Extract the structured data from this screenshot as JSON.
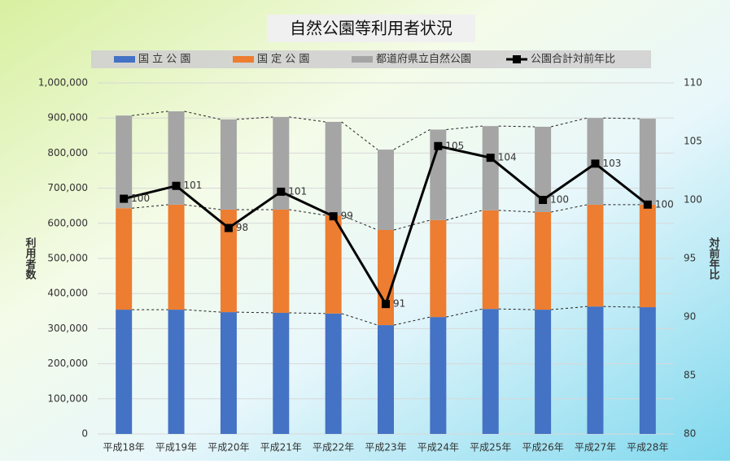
{
  "chart_data": {
    "type": "bar",
    "title": "自然公園等利用者状況",
    "categories": [
      "平成18年",
      "平成19年",
      "平成20年",
      "平成21年",
      "平成22年",
      "平成23年",
      "平成24年",
      "平成25年",
      "平成26年",
      "平成27年",
      "平成28年"
    ],
    "series": [
      {
        "name": "国 立 公 園",
        "color": "#4472c4",
        "values": [
          354000,
          354000,
          347000,
          345000,
          343000,
          310000,
          333000,
          356000,
          354000,
          363000,
          361000
        ]
      },
      {
        "name": "国 定 公 園",
        "color": "#ed7d31",
        "values": [
          289000,
          299000,
          292000,
          294000,
          280000,
          271000,
          276000,
          281000,
          278000,
          290000,
          292000
        ]
      },
      {
        "name": "都道府県立自然公園",
        "color": "#a5a5a5",
        "values": [
          264000,
          266000,
          257000,
          264000,
          266000,
          229000,
          258000,
          240000,
          243000,
          247000,
          245000
        ]
      },
      {
        "name": "公園合計対前年比",
        "color": "#000000",
        "type": "line",
        "axis": "y2",
        "values": [
          100.1,
          101.2,
          97.6,
          100.7,
          98.6,
          91.1,
          104.6,
          103.6,
          100.0,
          103.1,
          99.6
        ],
        "value_labels": [
          "100",
          "101",
          "98",
          "101",
          "99",
          "91",
          "105",
          "104",
          "100",
          "103",
          "100"
        ]
      }
    ],
    "ylabel": "利用者数",
    "y2label": "対前年比",
    "ylim": [
      0,
      1000000
    ],
    "yticks": [
      0,
      {
        "value": 100000,
        "label": "100,000"
      },
      {
        "value": 200000,
        "label": "200,000"
      },
      {
        "value": 300000,
        "label": "300,000"
      },
      {
        "value": 400000,
        "label": "400,000"
      },
      {
        "value": 500000,
        "label": "500,000"
      },
      {
        "value": 600000,
        "label": "600,000"
      },
      {
        "value": 700000,
        "label": "700,000"
      },
      {
        "value": 800000,
        "label": "800,000"
      },
      {
        "value": 900000,
        "label": "900,000"
      },
      {
        "value": 1000000,
        "label": "1,000,000"
      }
    ],
    "y2lim": [
      80,
      110
    ],
    "y2ticks": [
      80,
      85,
      90,
      95,
      100,
      105,
      110
    ],
    "grid": true,
    "legend": "top",
    "stacked": true
  }
}
